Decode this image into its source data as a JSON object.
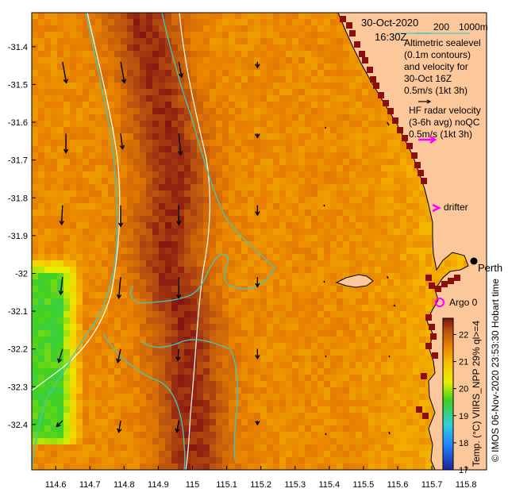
{
  "chart_data": {
    "type": "heatmap",
    "title": "",
    "datetime": [
      "30-Oct-2020",
      "16:30Z"
    ],
    "bathymetry_labels": [
      "200",
      "1000m"
    ],
    "x_ticks": [
      "114.6",
      "114.7",
      "114.8",
      "114.9",
      "115",
      "115.1",
      "115.2",
      "115.3",
      "115.4",
      "115.5",
      "115.6",
      "115.7",
      "115.8"
    ],
    "y_ticks": [
      "-31.4",
      "-31.5",
      "-31.6",
      "-31.7",
      "-31.8",
      "-31.9",
      "-32",
      "-32.1",
      "-32.2",
      "-32.3",
      "-32.4"
    ],
    "xlim": [
      114.53,
      115.86
    ],
    "ylim": [
      -32.52,
      -31.31
    ],
    "legend": {
      "altimetry_lines": [
        "Altimetric sealevel",
        "(0.1m contours)",
        "and velocity for",
        "30-Oct 16Z",
        "0.5m/s (1kt 3h)"
      ],
      "hf_radar_lines": [
        "HF radar velocity",
        "(3-6h avg) noQC",
        "0.5m/s (1kt 3h)"
      ],
      "drifter_label": "drifter",
      "argo_label": "Argo 0",
      "place_label": "Perth"
    },
    "colorbar": {
      "label": "Temp. (°C) VIIRS_NPP 29% ql>=4",
      "ticks": [
        "17",
        "18",
        "19",
        "20",
        "21",
        "22"
      ],
      "range": [
        17,
        22.6
      ]
    },
    "credit": "© IMOS 06-Nov-2020 23:53:30 Hobart time",
    "colors": {
      "land": "#fcc89b",
      "contour": "#40c8c0",
      "bathy_line": "#ffffff",
      "hf_radar": "#ff00ff",
      "argo": "#ff00ff"
    },
    "sst_field": {
      "description_units": "degC",
      "band_center_lon": [
        [
          -31.35,
          114.86
        ],
        [
          -31.6,
          114.92
        ],
        [
          -31.75,
          114.95
        ],
        [
          -31.95,
          114.92
        ],
        [
          -32.15,
          114.98
        ],
        [
          -32.45,
          115.0
        ]
      ],
      "peak_temp": 22.4,
      "background_temp": 21.4,
      "cool_region": {
        "lon_max": 114.68,
        "lat_min": -32.45,
        "lat_max": -31.95,
        "temp": 19.6
      }
    },
    "velocity_vectors": [
      {
        "lon": 114.62,
        "lat": -31.44,
        "u": 0.04,
        "v": -0.22
      },
      {
        "lon": 114.79,
        "lat": -31.44,
        "u": 0.04,
        "v": -0.22
      },
      {
        "lon": 114.96,
        "lat": -31.44,
        "u": 0.03,
        "v": -0.16
      },
      {
        "lon": 115.19,
        "lat": -31.44,
        "u": 0.0,
        "v": -0.06
      },
      {
        "lon": 114.63,
        "lat": -31.63,
        "u": 0.0,
        "v": -0.2
      },
      {
        "lon": 114.79,
        "lat": -31.63,
        "u": 0.02,
        "v": -0.16
      },
      {
        "lon": 114.96,
        "lat": -31.63,
        "u": 0.02,
        "v": -0.22
      },
      {
        "lon": 115.19,
        "lat": -31.63,
        "u": 0.0,
        "v": -0.04
      },
      {
        "lon": 114.62,
        "lat": -31.82,
        "u": -0.01,
        "v": -0.2
      },
      {
        "lon": 114.79,
        "lat": -31.82,
        "u": 0.0,
        "v": -0.22
      },
      {
        "lon": 114.96,
        "lat": -31.82,
        "u": 0.0,
        "v": -0.2
      },
      {
        "lon": 115.19,
        "lat": -31.82,
        "u": 0.0,
        "v": -0.1
      },
      {
        "lon": 114.62,
        "lat": -32.01,
        "u": -0.02,
        "v": -0.18
      },
      {
        "lon": 114.79,
        "lat": -32.01,
        "u": -0.02,
        "v": -0.22
      },
      {
        "lon": 114.96,
        "lat": -32.01,
        "u": 0.0,
        "v": -0.22
      },
      {
        "lon": 115.19,
        "lat": -32.01,
        "u": 0.0,
        "v": -0.1
      },
      {
        "lon": 114.62,
        "lat": -32.2,
        "u": -0.04,
        "v": -0.14
      },
      {
        "lon": 114.79,
        "lat": -32.2,
        "u": -0.03,
        "v": -0.14
      },
      {
        "lon": 114.96,
        "lat": -32.2,
        "u": -0.01,
        "v": -0.12
      },
      {
        "lon": 115.19,
        "lat": -32.2,
        "u": 0.0,
        "v": -0.1
      },
      {
        "lon": 114.62,
        "lat": -32.39,
        "u": -0.06,
        "v": -0.06
      },
      {
        "lon": 114.79,
        "lat": -32.39,
        "u": -0.02,
        "v": -0.12
      },
      {
        "lon": 114.96,
        "lat": -32.39,
        "u": -0.02,
        "v": -0.12
      },
      {
        "lon": 115.19,
        "lat": -32.39,
        "u": 0.0,
        "v": -0.04
      }
    ]
  }
}
